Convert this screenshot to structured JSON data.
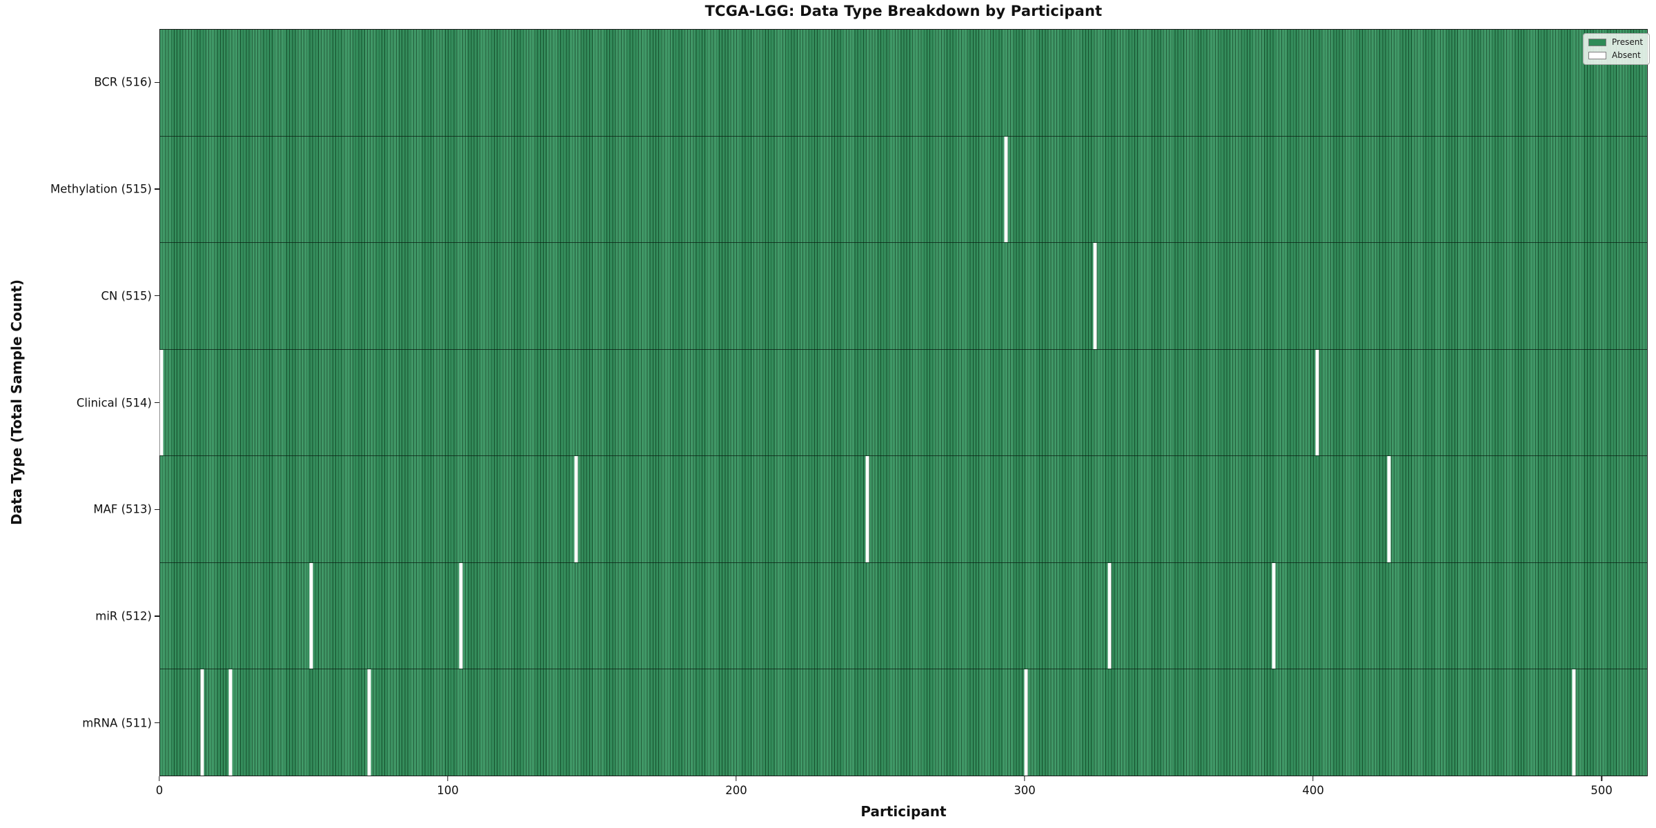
{
  "title": "TCGA-LGG: Data Type Breakdown by Participant",
  "colors": {
    "present": "#2e8b57",
    "absent": "#ffffff",
    "cell_fill": "#36925f",
    "cell_edge": "#17532f",
    "plot_border": "#1a1a1a"
  },
  "chart_data": {
    "type": "heatmap",
    "title": "TCGA-LGG: Data Type Breakdown by Participant",
    "xlabel": "Participant",
    "ylabel": "Data Type (Total Sample Count)",
    "x_range": [
      0,
      516
    ],
    "n_participants": 516,
    "xticks": [
      0,
      100,
      200,
      300,
      400,
      500
    ],
    "grid": false,
    "legend": {
      "position": "upper right",
      "entries": [
        {
          "label": "Present",
          "color": "#2e8b57"
        },
        {
          "label": "Absent",
          "color": "#ffffff"
        }
      ]
    },
    "rows": [
      {
        "label": "BCR (516)",
        "data_type": "BCR",
        "total_samples": 516,
        "absent_participants": []
      },
      {
        "label": "Methylation (515)",
        "data_type": "Methylation",
        "total_samples": 515,
        "absent_participants": [
          293
        ]
      },
      {
        "label": "CN (515)",
        "data_type": "CN",
        "total_samples": 515,
        "absent_participants": [
          324
        ]
      },
      {
        "label": "Clinical (514)",
        "data_type": "Clinical",
        "total_samples": 514,
        "absent_participants": [
          0,
          401
        ]
      },
      {
        "label": "MAF (513)",
        "data_type": "MAF",
        "total_samples": 513,
        "absent_participants": [
          144,
          245,
          426
        ]
      },
      {
        "label": "miR (512)",
        "data_type": "miR",
        "total_samples": 512,
        "absent_participants": [
          52,
          104,
          329,
          386
        ]
      },
      {
        "label": "mRNA (511)",
        "data_type": "mRNA",
        "total_samples": 511,
        "absent_participants": [
          14,
          24,
          72,
          300,
          490
        ]
      }
    ]
  }
}
